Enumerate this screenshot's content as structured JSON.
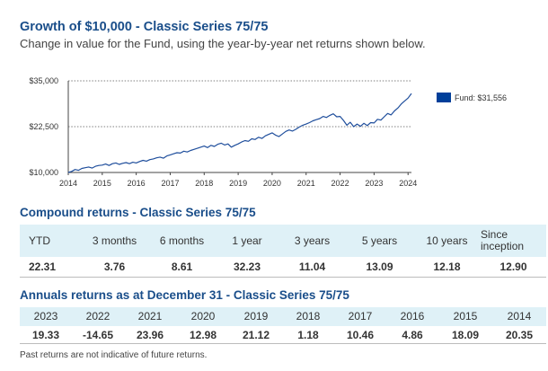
{
  "header": {
    "title": "Growth of $10,000 - Classic Series 75/75",
    "subtitle": "Change in value for the Fund, using the year-by-year net returns shown below."
  },
  "legend": {
    "label": "Fund: $31,556",
    "color": "#003f9a"
  },
  "chart_data": {
    "type": "line",
    "title": "Growth of $10,000 - Classic Series 75/75",
    "xlabel": "",
    "ylabel": "",
    "xlim": [
      2014.0,
      2024.1
    ],
    "ylim": [
      10000,
      35000
    ],
    "yticks": [
      10000,
      22500,
      35000
    ],
    "ytick_labels": [
      "$10,000",
      "$22,500",
      "$35,000"
    ],
    "xticks": [
      2014,
      2015,
      2016,
      2017,
      2018,
      2019,
      2020,
      2021,
      2022,
      2023,
      2024
    ],
    "xtick_labels": [
      "2014",
      "2015",
      "2016",
      "2017",
      "2018",
      "2019",
      "2020",
      "2021",
      "2022",
      "2023",
      "2024"
    ],
    "grid": "dotted horizontal at y ticks",
    "legend_position": "right",
    "series": [
      {
        "name": "Fund: $31,556",
        "color": "#1f4e9c",
        "x": [
          2014.0,
          2014.1,
          2014.2,
          2014.3,
          2014.4,
          2014.5,
          2014.6,
          2014.7,
          2014.8,
          2014.9,
          2015.0,
          2015.1,
          2015.2,
          2015.3,
          2015.4,
          2015.5,
          2015.6,
          2015.7,
          2015.8,
          2015.9,
          2016.0,
          2016.1,
          2016.2,
          2016.3,
          2016.4,
          2016.5,
          2016.6,
          2016.7,
          2016.8,
          2016.9,
          2017.0,
          2017.1,
          2017.2,
          2017.3,
          2017.4,
          2017.5,
          2017.6,
          2017.7,
          2017.8,
          2017.9,
          2018.0,
          2018.1,
          2018.2,
          2018.3,
          2018.4,
          2018.5,
          2018.6,
          2018.7,
          2018.8,
          2018.9,
          2019.0,
          2019.1,
          2019.2,
          2019.3,
          2019.4,
          2019.5,
          2019.6,
          2019.7,
          2019.8,
          2019.9,
          2020.0,
          2020.1,
          2020.2,
          2020.3,
          2020.4,
          2020.5,
          2020.6,
          2020.7,
          2020.8,
          2020.9,
          2021.0,
          2021.1,
          2021.2,
          2021.3,
          2021.4,
          2021.5,
          2021.6,
          2021.7,
          2021.8,
          2021.9,
          2022.0,
          2022.1,
          2022.2,
          2022.3,
          2022.4,
          2022.5,
          2022.6,
          2022.7,
          2022.8,
          2022.9,
          2023.0,
          2023.1,
          2023.2,
          2023.3,
          2023.4,
          2023.5,
          2023.6,
          2023.7,
          2023.8,
          2023.9,
          2024.0,
          2024.1
        ],
        "values": [
          10000,
          10300,
          10800,
          10600,
          11100,
          11300,
          11500,
          11200,
          11700,
          11900,
          12000,
          12300,
          11900,
          12400,
          12600,
          12200,
          12500,
          12700,
          12400,
          12800,
          12600,
          13000,
          13300,
          13100,
          13500,
          13700,
          14000,
          14200,
          13900,
          14500,
          14800,
          15100,
          15400,
          15300,
          15800,
          15600,
          16000,
          16300,
          16600,
          16900,
          17200,
          16800,
          17400,
          17100,
          17700,
          18000,
          17500,
          17800,
          16900,
          17400,
          17800,
          18300,
          18700,
          18500,
          19200,
          19000,
          19600,
          19300,
          20000,
          20400,
          20800,
          20200,
          19800,
          20500,
          21200,
          21600,
          21300,
          21800,
          22400,
          22900,
          23200,
          23600,
          24100,
          24400,
          24700,
          25300,
          25000,
          25600,
          26000,
          25200,
          25300,
          24200,
          22900,
          23700,
          22500,
          23200,
          22600,
          23400,
          22800,
          23600,
          23500,
          24500,
          24300,
          25200,
          26100,
          25700,
          26800,
          27600,
          28700,
          29500,
          30300,
          31556
        ]
      }
    ]
  },
  "compound_returns": {
    "title": "Compound returns - Classic Series 75/75",
    "headers": [
      "YTD",
      "3 months",
      "6 months",
      "1 year",
      "3 years",
      "5 years",
      "10 years",
      "Since inception"
    ],
    "values": [
      "22.31",
      "3.76",
      "8.61",
      "32.23",
      "11.04",
      "13.09",
      "12.18",
      "12.90"
    ]
  },
  "annual_returns": {
    "title": "Annuals returns as at December 31 - Classic Series 75/75",
    "headers": [
      "2023",
      "2022",
      "2021",
      "2020",
      "2019",
      "2018",
      "2017",
      "2016",
      "2015",
      "2014"
    ],
    "values": [
      "19.33",
      "-14.65",
      "23.96",
      "12.98",
      "21.12",
      "1.18",
      "10.46",
      "4.86",
      "18.09",
      "20.35"
    ]
  },
  "footer": {
    "note": "Past returns are not indicative of future returns."
  }
}
